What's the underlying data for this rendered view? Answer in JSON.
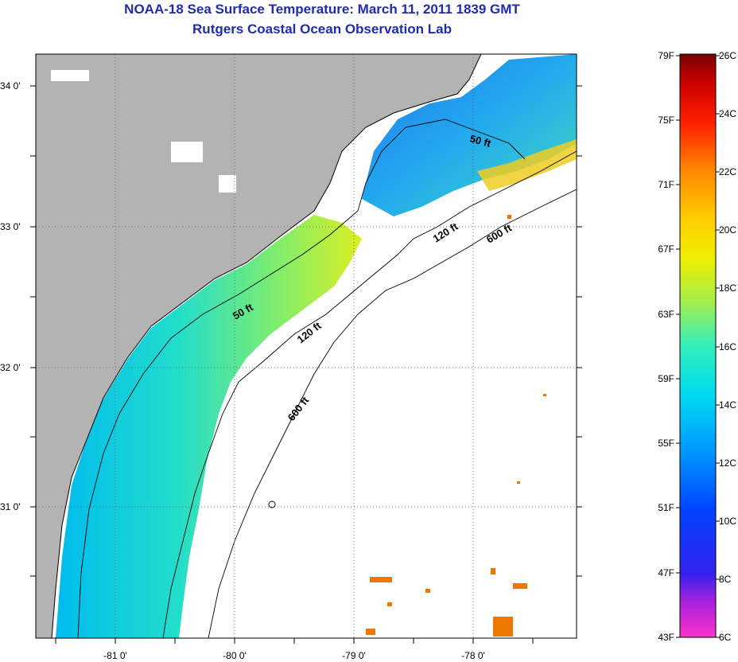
{
  "header": {
    "title": "NOAA-18 Sea Surface Temperature:  March 11, 2011 1839 GMT",
    "subtitle": "Rutgers Coastal Ocean Observation Lab"
  },
  "map": {
    "region": "South Carolina coast",
    "lat_labels": [
      "34 0'",
      "33 0'",
      "32 0'",
      "31 0'"
    ],
    "lon_labels": [
      "-81 0'",
      "-80 0'",
      "-79 0'",
      "-78 0'"
    ],
    "contours": {
      "c50_a": "50 ft",
      "c50_b": "50 ft",
      "c120_a": "120 ft",
      "c120_b": "120 ft",
      "c600_a": "600 ft",
      "c600_b": "600 ft"
    },
    "colors": {
      "land": "#b3b3b3",
      "no_data": "#ffffff",
      "coast": "#000000"
    }
  },
  "colorbar": {
    "fahrenheit": [
      "79F",
      "75F",
      "71F",
      "67F",
      "63F",
      "59F",
      "55F",
      "51F",
      "47F",
      "43F"
    ],
    "celsius": [
      "26C",
      "24C",
      "22C",
      "20C",
      "18C",
      "16C",
      "14C",
      "12C",
      "10C",
      "8C",
      "6C"
    ]
  }
}
